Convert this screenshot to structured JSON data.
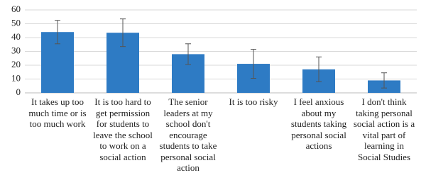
{
  "chart_data": {
    "type": "bar",
    "categories": [
      "It takes up too much time or is too much work",
      "It is too hard to get permission for students to leave the school to work on a social action",
      "The senior leaders at my school don't encourage students to take personal social action",
      "It is too risky",
      "I feel anxious about my students taking personal social actions",
      "I don't think taking personal social action is a vital part of learning in Social Studies"
    ],
    "values": [
      44,
      43.5,
      28,
      21,
      17,
      9
    ],
    "errors": [
      8.5,
      10,
      7.5,
      10.5,
      9,
      5.5
    ],
    "color": "#2e7bc4",
    "ylim": [
      0,
      60
    ],
    "yticks": [
      0,
      10,
      20,
      30,
      40,
      50,
      60
    ],
    "grid": true
  }
}
